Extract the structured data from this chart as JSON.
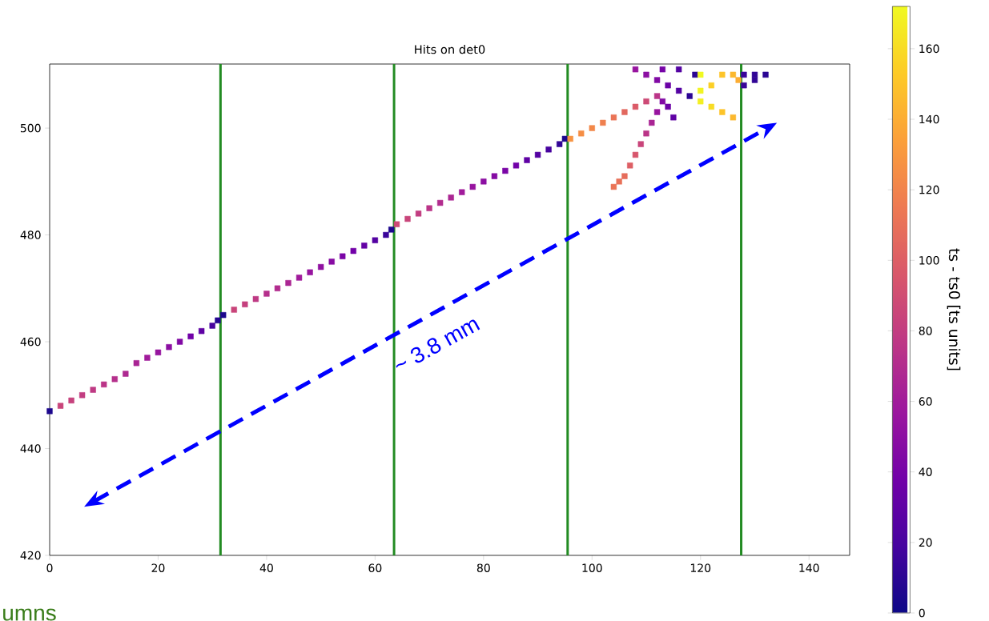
{
  "chart_data": {
    "type": "scatter",
    "title": "Hits on det0",
    "clabel": "ts - ts0 [ts units]",
    "marker": "square",
    "x": [
      0,
      2,
      4,
      6,
      8,
      10,
      12,
      14,
      16,
      18,
      20,
      22,
      24,
      26,
      28,
      30,
      31,
      32,
      34,
      36,
      38,
      40,
      42,
      44,
      46,
      48,
      50,
      52,
      54,
      56,
      58,
      60,
      62,
      63,
      64,
      66,
      68,
      70,
      72,
      74,
      76,
      78,
      80,
      82,
      84,
      86,
      88,
      90,
      92,
      94,
      95,
      96,
      98,
      100,
      102,
      104,
      106,
      108,
      110,
      112,
      104,
      105,
      106,
      107,
      108,
      109,
      110,
      111,
      112,
      113,
      108,
      110,
      112,
      114,
      116,
      118,
      113,
      116,
      119,
      114,
      115,
      120,
      120,
      120,
      122,
      122,
      124,
      126,
      124,
      126,
      127,
      128,
      130,
      132,
      128,
      130
    ],
    "values": [
      447,
      448,
      449,
      450,
      451,
      452,
      453,
      454,
      456,
      457,
      458,
      459,
      460,
      461,
      462,
      463,
      464,
      465,
      466,
      467,
      468,
      469,
      470,
      471,
      472,
      473,
      474,
      475,
      476,
      477,
      478,
      479,
      480,
      481,
      482,
      483,
      484,
      485,
      486,
      487,
      488,
      489,
      490,
      491,
      492,
      493,
      494,
      495,
      496,
      497,
      498,
      498,
      499,
      500,
      501,
      502,
      503,
      504,
      505,
      506,
      489,
      490,
      491,
      493,
      495,
      497,
      499,
      501,
      503,
      505,
      511,
      510,
      509,
      508,
      507,
      506,
      511,
      511,
      510,
      504,
      502,
      510,
      507,
      505,
      504,
      508,
      503,
      502,
      510,
      510,
      509,
      510,
      510,
      510,
      508,
      509
    ],
    "cvalues": [
      5,
      85,
      83,
      80,
      78,
      75,
      72,
      68,
      65,
      60,
      55,
      50,
      45,
      38,
      30,
      20,
      8,
      5,
      85,
      82,
      78,
      72,
      70,
      66,
      60,
      55,
      52,
      48,
      42,
      38,
      32,
      25,
      15,
      5,
      88,
      85,
      80,
      75,
      70,
      66,
      60,
      55,
      50,
      47,
      42,
      38,
      30,
      25,
      20,
      12,
      5,
      128,
      125,
      122,
      118,
      112,
      105,
      98,
      88,
      75,
      112,
      110,
      108,
      100,
      95,
      85,
      75,
      65,
      55,
      45,
      55,
      50,
      45,
      35,
      25,
      10,
      40,
      25,
      10,
      35,
      30,
      172,
      170,
      168,
      160,
      155,
      150,
      145,
      150,
      145,
      140,
      15,
      12,
      10,
      15,
      12
    ],
    "xlim": [
      0,
      147.5
    ],
    "ylim": [
      420,
      512
    ],
    "xticks": [
      0,
      20,
      40,
      60,
      80,
      100,
      120,
      140
    ],
    "yticks": [
      420,
      440,
      460,
      480,
      500
    ],
    "clim": [
      0,
      172
    ],
    "cticks": [
      0,
      20,
      40,
      60,
      80,
      100,
      120,
      140,
      160
    ],
    "ref_lines": [
      {
        "axis": "x",
        "value": 31.5,
        "color": "#228b22"
      },
      {
        "axis": "x",
        "value": 63.5,
        "color": "#228b22"
      },
      {
        "axis": "x",
        "value": 95.5,
        "color": "#228b22"
      },
      {
        "axis": "x",
        "value": 127.5,
        "color": "#228b22"
      }
    ],
    "annotations": [
      "~ 3.8 mm",
      "umns"
    ]
  }
}
